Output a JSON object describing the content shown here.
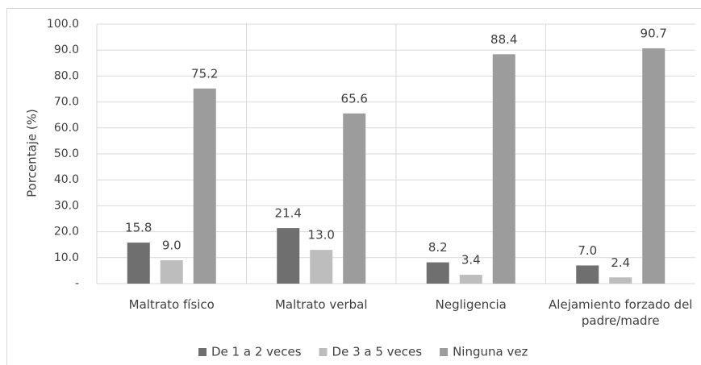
{
  "chart_data": {
    "type": "bar",
    "y_label": "Porcentaje (%)",
    "categories": [
      "Maltrato físico",
      "Maltrato verbal",
      "Negligencia",
      "Alejamiento forzado del padre/madre"
    ],
    "series": [
      {
        "name": "De 1 a 2 veces",
        "color": "#6f6f6f",
        "values": [
          15.8,
          21.4,
          8.2,
          7.0
        ],
        "value_labels": [
          "15.8",
          "21.4",
          "8.2",
          "7.0"
        ]
      },
      {
        "name": "De 3 a 5 veces",
        "color": "#bdbdbd",
        "values": [
          9.0,
          13.0,
          3.4,
          2.4
        ],
        "value_labels": [
          "9.0",
          "13.0",
          "3.4",
          "2.4"
        ]
      },
      {
        "name": "Ninguna vez",
        "color": "#9c9c9c",
        "values": [
          75.2,
          65.6,
          88.4,
          90.7
        ],
        "value_labels": [
          "75.2",
          "65.6",
          "88.4",
          "90.7"
        ]
      }
    ],
    "ylim": [
      0,
      100
    ],
    "yticks": [
      {
        "value": 0,
        "label": "-"
      },
      {
        "value": 10,
        "label": "10.0"
      },
      {
        "value": 20,
        "label": "20.0"
      },
      {
        "value": 30,
        "label": "30.0"
      },
      {
        "value": 40,
        "label": "40.0"
      },
      {
        "value": 50,
        "label": "50.0"
      },
      {
        "value": 60,
        "label": "60.0"
      },
      {
        "value": 70,
        "label": "70.0"
      },
      {
        "value": 80,
        "label": "80.0"
      },
      {
        "value": 90,
        "label": "90.0"
      },
      {
        "value": 100,
        "label": "100.0"
      }
    ],
    "grid": true
  }
}
